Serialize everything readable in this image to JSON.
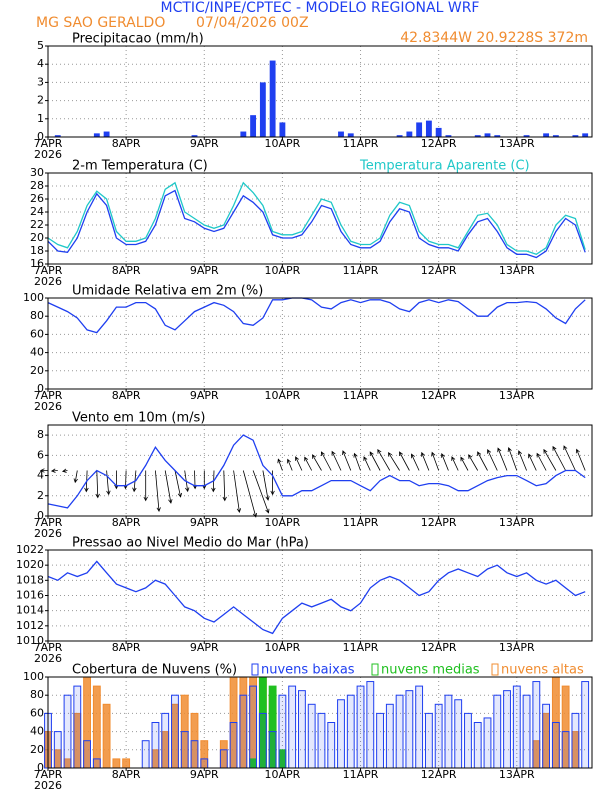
{
  "header": {
    "title": "MCTIC/INPE/CPTEC - MODELO REGIONAL WRF",
    "location": "MG SAO GERALDO",
    "date": "07/04/2026 00Z",
    "coords": "42.8344W 20.9228S 372m"
  },
  "chart_data": [
    {
      "type": "bar",
      "title": "Precipitacao (mm/h)",
      "ylim": [
        0,
        5
      ],
      "yticks": [
        0,
        1,
        2,
        3,
        4,
        5
      ],
      "grid": true,
      "xlim": [
        0,
        55.7
      ],
      "xticks": [
        {
          "value": 0,
          "label": "7APR"
        },
        {
          "value": 8,
          "label": "8APR"
        },
        {
          "value": 16,
          "label": "9APR"
        },
        {
          "value": 24,
          "label": "10APR"
        },
        {
          "value": 32,
          "label": "11APR"
        },
        {
          "value": 40,
          "label": "12APR"
        },
        {
          "value": 48,
          "label": "13APR"
        }
      ],
      "x_year": "2026",
      "series": [
        {
          "color": "#1f3ff0",
          "values": [
            0,
            0.1,
            0,
            0,
            0,
            0.2,
            0.3,
            0,
            0,
            0,
            0,
            0,
            0,
            0,
            0,
            0.1,
            0,
            0,
            0,
            0,
            0.3,
            1.2,
            3.0,
            4.2,
            0.8,
            0,
            0,
            0,
            0,
            0,
            0.3,
            0.2,
            0,
            0,
            0,
            0,
            0.1,
            0.3,
            0.8,
            0.9,
            0.5,
            0.1,
            0,
            0,
            0.1,
            0.2,
            0.1,
            0,
            0,
            0.1,
            0,
            0.2,
            0.1,
            0,
            0.1,
            0.2
          ]
        }
      ]
    },
    {
      "type": "line",
      "ylim": [
        16,
        30
      ],
      "yticks": [
        16,
        18,
        20,
        22,
        24,
        26,
        28,
        30
      ],
      "grid": true,
      "xlim": [
        0,
        55.7
      ],
      "xticks": [
        {
          "value": 0,
          "label": "7APR"
        },
        {
          "value": 8,
          "label": "8APR"
        },
        {
          "value": 16,
          "label": "9APR"
        },
        {
          "value": 24,
          "label": "10APR"
        },
        {
          "value": 32,
          "label": "11APR"
        },
        {
          "value": 40,
          "label": "12APR"
        },
        {
          "value": 48,
          "label": "13APR"
        }
      ],
      "x_year": "2026",
      "series": [
        {
          "name": "2-m Temperatura (C)",
          "color": "#1f3ff0",
          "values": [
            19.5,
            18,
            17.8,
            20,
            24,
            26.8,
            25,
            20,
            19,
            19,
            19.5,
            22,
            26.5,
            27.3,
            23,
            22.5,
            21.5,
            21,
            21.5,
            24,
            26.5,
            25.5,
            24,
            20.5,
            20,
            20,
            20.5,
            22.5,
            25,
            24.5,
            21,
            19,
            18.5,
            18.5,
            19.5,
            22.5,
            24.5,
            24,
            20,
            19,
            18.5,
            18.5,
            18,
            20.5,
            22.5,
            23,
            21,
            18.5,
            17.5,
            17.5,
            17,
            18,
            21,
            23,
            22,
            17.8
          ]
        },
        {
          "name": "Temperatura Aparente (C)",
          "color": "#20c8c8",
          "values": [
            20,
            19,
            18.5,
            21,
            25,
            27.2,
            26,
            21,
            19.5,
            19.5,
            20,
            23,
            27.5,
            28.5,
            24,
            23,
            22,
            21.5,
            22,
            25,
            28.5,
            27,
            25,
            21,
            20.5,
            20.5,
            21,
            23.5,
            26,
            25.5,
            22,
            19.5,
            19,
            19,
            20,
            23.5,
            25.5,
            25,
            21,
            19.5,
            19,
            19,
            18.5,
            21,
            23.5,
            23.8,
            22,
            19,
            18,
            18,
            17.5,
            18.5,
            22,
            23.5,
            23,
            18.2
          ]
        }
      ]
    },
    {
      "type": "line",
      "title": "Umidade Relativa em 2m (%)",
      "ylim": [
        0,
        100
      ],
      "yticks": [
        0,
        20,
        40,
        60,
        80,
        100
      ],
      "grid": true,
      "xlim": [
        0,
        55.7
      ],
      "xticks": [
        {
          "value": 0,
          "label": "7APR"
        },
        {
          "value": 8,
          "label": "8APR"
        },
        {
          "value": 16,
          "label": "9APR"
        },
        {
          "value": 24,
          "label": "10APR"
        },
        {
          "value": 32,
          "label": "11APR"
        },
        {
          "value": 40,
          "label": "12APR"
        },
        {
          "value": 48,
          "label": "13APR"
        }
      ],
      "x_year": "2026",
      "series": [
        {
          "color": "#1f3ff0",
          "values": [
            95,
            90,
            85,
            78,
            65,
            62,
            75,
            90,
            90,
            95,
            95,
            88,
            70,
            65,
            75,
            85,
            90,
            95,
            92,
            85,
            72,
            70,
            78,
            98,
            98,
            100,
            100,
            98,
            90,
            88,
            95,
            98,
            95,
            98,
            98,
            95,
            88,
            85,
            95,
            98,
            95,
            98,
            96,
            88,
            80,
            80,
            90,
            95,
            95,
            96,
            95,
            88,
            78,
            72,
            88,
            98
          ]
        }
      ]
    },
    {
      "type": "wind",
      "title": "Vento em 10m (m/s)",
      "ylim": [
        0,
        9
      ],
      "yticks": [
        0,
        2,
        4,
        6,
        8
      ],
      "grid": true,
      "xlim": [
        0,
        55.7
      ],
      "xticks": [
        {
          "value": 0,
          "label": "7APR"
        },
        {
          "value": 8,
          "label": "8APR"
        },
        {
          "value": 16,
          "label": "9APR"
        },
        {
          "value": 24,
          "label": "10APR"
        },
        {
          "value": 32,
          "label": "11APR"
        },
        {
          "value": 40,
          "label": "12APR"
        },
        {
          "value": 48,
          "label": "13APR"
        }
      ],
      "x_year": "2026",
      "wind_direction": [
        180,
        185,
        190,
        260,
        268,
        272,
        275,
        270,
        268,
        265,
        270,
        275,
        280,
        282,
        278,
        272,
        270,
        268,
        272,
        278,
        285,
        290,
        280,
        270,
        110,
        112,
        115,
        118,
        120,
        118,
        115,
        112,
        110,
        115,
        118,
        120,
        122,
        118,
        115,
        112,
        110,
        112,
        115,
        118,
        120,
        118,
        115,
        112,
        110,
        112,
        115,
        118,
        120,
        118,
        115,
        112
      ],
      "series": [
        {
          "color": "#1f3ff0",
          "values": [
            1.2,
            1,
            0.8,
            2,
            3.5,
            4.5,
            4,
            3,
            3,
            3.5,
            5,
            6.8,
            5.5,
            4.5,
            3.5,
            3,
            3,
            3.5,
            5,
            7,
            8,
            7.5,
            5,
            4,
            2,
            2,
            2.5,
            2.5,
            3,
            3.5,
            3.5,
            3.5,
            3,
            2.5,
            3.5,
            4,
            3.5,
            3.5,
            3,
            3.2,
            3.2,
            3,
            2.5,
            2.5,
            3,
            3.5,
            3.8,
            4,
            4,
            3.5,
            3,
            3.2,
            4,
            4.5,
            4.5,
            3.8
          ]
        }
      ]
    },
    {
      "type": "line",
      "title": "Pressao ao Nivel Medio do Mar (hPa)",
      "ylim": [
        1010,
        1022
      ],
      "yticks": [
        1010,
        1012,
        1014,
        1016,
        1018,
        1020,
        1022
      ],
      "grid": true,
      "xlim": [
        0,
        55.7
      ],
      "xticks": [
        {
          "value": 0,
          "label": "7APR"
        },
        {
          "value": 8,
          "label": "8APR"
        },
        {
          "value": 16,
          "label": "9APR"
        },
        {
          "value": 24,
          "label": "10APR"
        },
        {
          "value": 32,
          "label": "11APR"
        },
        {
          "value": 40,
          "label": "12APR"
        },
        {
          "value": 48,
          "label": "13APR"
        }
      ],
      "x_year": "2026",
      "series": [
        {
          "color": "#1f3ff0",
          "values": [
            1018.5,
            1018,
            1019,
            1018.5,
            1019,
            1020.5,
            1019,
            1017.5,
            1017,
            1016.5,
            1017,
            1018,
            1017.5,
            1016,
            1014.5,
            1014,
            1013,
            1012.5,
            1013.5,
            1014.5,
            1013.5,
            1012.5,
            1011.5,
            1011,
            1013,
            1014,
            1015,
            1014.5,
            1015,
            1015.5,
            1014.5,
            1014,
            1015,
            1017,
            1018,
            1018.5,
            1018,
            1017,
            1016,
            1016.5,
            1018,
            1019,
            1019.5,
            1019,
            1018.5,
            1019.5,
            1020,
            1019,
            1018.5,
            1019,
            1018,
            1017.5,
            1018,
            1017,
            1016,
            1016.5
          ]
        }
      ]
    },
    {
      "type": "bar",
      "title": "Cobertura de Nuvens (%)",
      "ylim": [
        0,
        100
      ],
      "yticks": [
        0,
        20,
        40,
        60,
        80,
        100
      ],
      "grid": true,
      "xlim": [
        0,
        55.7
      ],
      "xticks": [
        {
          "value": 0,
          "label": "7APR"
        },
        {
          "value": 8,
          "label": "8APR"
        },
        {
          "value": 16,
          "label": "9APR"
        },
        {
          "value": 24,
          "label": "10APR"
        },
        {
          "value": 32,
          "label": "11APR"
        },
        {
          "value": 40,
          "label": "12APR"
        },
        {
          "value": 48,
          "label": "13APR"
        }
      ],
      "x_year": "2026",
      "series": [
        {
          "name": "nuvens baixas",
          "color": "#1f3ff0",
          "values": [
            60,
            40,
            80,
            90,
            30,
            10,
            0,
            0,
            0,
            0,
            30,
            50,
            60,
            80,
            40,
            30,
            10,
            0,
            20,
            50,
            80,
            90,
            60,
            40,
            80,
            90,
            85,
            70,
            60,
            50,
            75,
            80,
            90,
            95,
            60,
            70,
            80,
            85,
            90,
            60,
            70,
            80,
            75,
            60,
            50,
            55,
            80,
            85,
            90,
            80,
            95,
            70,
            50,
            40,
            60,
            95
          ]
        },
        {
          "name": "nuvens medias",
          "color": "#20c020",
          "values": [
            0,
            0,
            0,
            0,
            0,
            0,
            0,
            0,
            0,
            0,
            0,
            0,
            0,
            0,
            0,
            0,
            0,
            0,
            0,
            0,
            0,
            10,
            100,
            90,
            20,
            0,
            0,
            0,
            0,
            0,
            0,
            0,
            0,
            0,
            0,
            0,
            0,
            0,
            0,
            0,
            0,
            0,
            0,
            0,
            0,
            0,
            0,
            0,
            0,
            0,
            0,
            0,
            0,
            0,
            0,
            0
          ]
        },
        {
          "name": "nuvens altas",
          "color": "#f08c30",
          "values": [
            40,
            20,
            10,
            60,
            100,
            90,
            70,
            10,
            10,
            0,
            0,
            20,
            40,
            70,
            80,
            60,
            30,
            0,
            30,
            100,
            100,
            100,
            100,
            80,
            0,
            0,
            0,
            0,
            0,
            0,
            0,
            0,
            0,
            0,
            0,
            0,
            0,
            0,
            0,
            0,
            0,
            0,
            0,
            0,
            0,
            0,
            0,
            0,
            0,
            0,
            30,
            60,
            100,
            90,
            40,
            0
          ]
        }
      ]
    }
  ]
}
